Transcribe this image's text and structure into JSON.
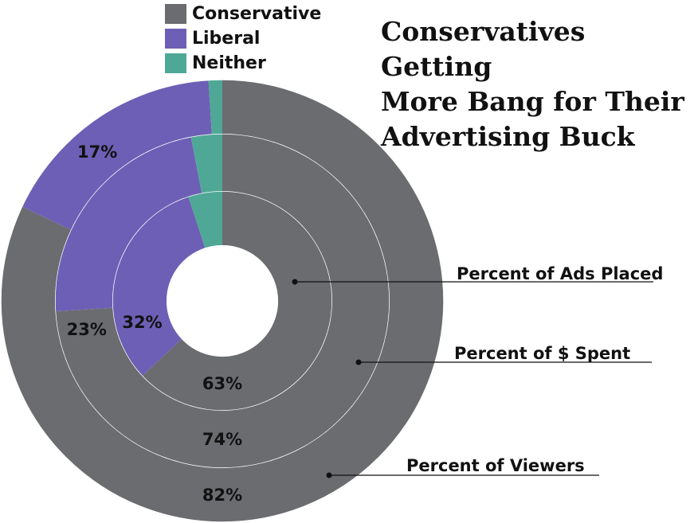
{
  "title_lines": [
    "Conservatives Getting",
    "More Bang for Their",
    "Advertising Buck"
  ],
  "colors": {
    "conservative": "#6b6c70",
    "liberal": "#6d5fb5",
    "neither": "#4fa896",
    "separator": "#ffffff"
  },
  "legend": [
    {
      "label": "Conservative",
      "color_key": "conservative"
    },
    {
      "label": "Liberal",
      "color_key": "liberal"
    },
    {
      "label": "Neither",
      "color_key": "neither"
    }
  ],
  "chart_data": {
    "type": "pie",
    "variant": "nested-donut",
    "categories": [
      "Conservative",
      "Liberal",
      "Neither"
    ],
    "series": [
      {
        "name": "Percent of Ads Placed",
        "values": [
          63,
          32,
          5
        ],
        "labels": [
          "63%",
          "32%",
          ""
        ]
      },
      {
        "name": "Percent of $ Spent",
        "values": [
          74,
          23,
          3
        ],
        "labels": [
          "74%",
          "23%",
          ""
        ]
      },
      {
        "name": "Percent of Viewers",
        "values": [
          82,
          17,
          1
        ],
        "labels": [
          "82%",
          "17%",
          ""
        ]
      }
    ],
    "legend_position": "top-left"
  }
}
